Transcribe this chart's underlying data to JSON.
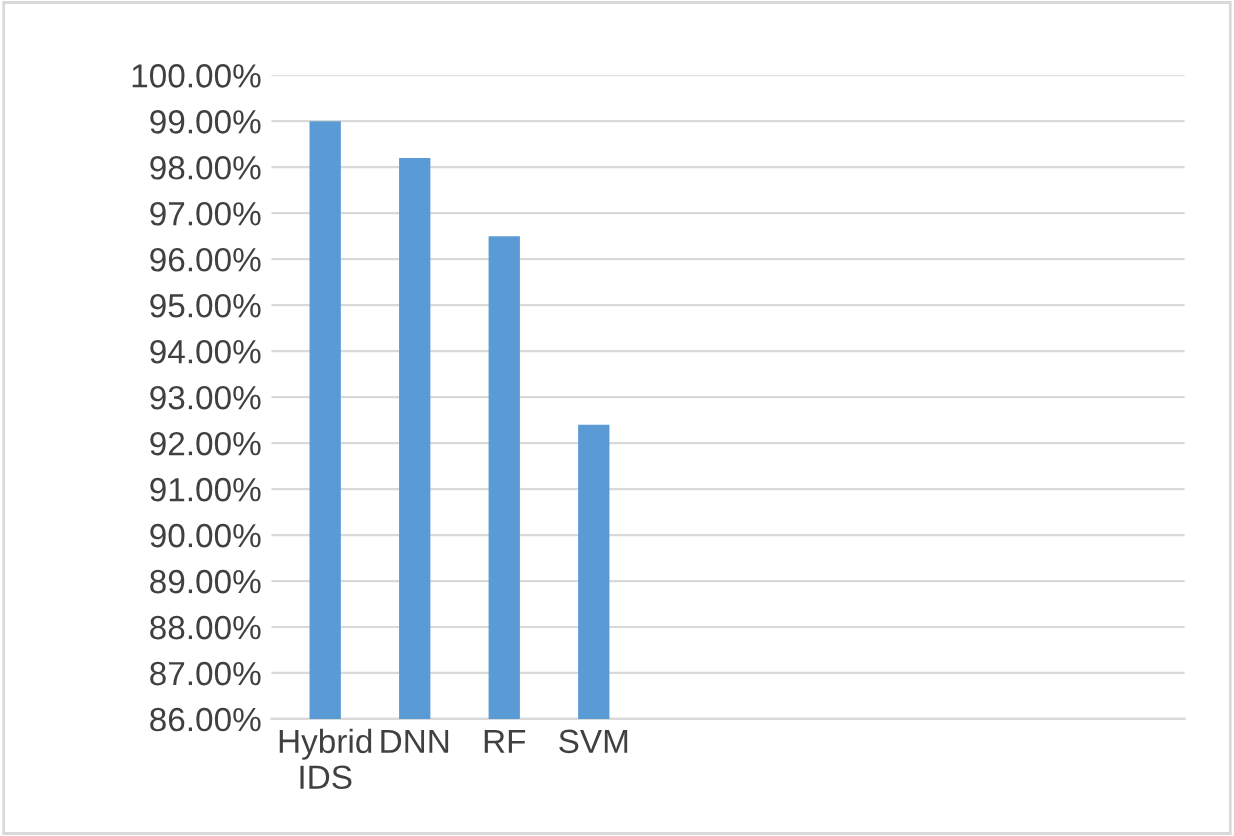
{
  "chart_data": {
    "type": "bar",
    "categories": [
      "Hybrid IDS",
      "DNN",
      "RF",
      "SVM",
      null,
      null,
      null,
      null,
      null,
      null
    ],
    "values": [
      99.0,
      98.2,
      96.5,
      92.4,
      null,
      null,
      null,
      null,
      null,
      null
    ],
    "color": "#5b9bd5",
    "ylim": [
      86,
      100
    ],
    "yticks": [
      {
        "value": 86,
        "label": "86.00%"
      },
      {
        "value": 87,
        "label": "87.00%"
      },
      {
        "value": 88,
        "label": "88.00%"
      },
      {
        "value": 89,
        "label": "89.00%"
      },
      {
        "value": 90,
        "label": "90.00%"
      },
      {
        "value": 91,
        "label": "91.00%"
      },
      {
        "value": 92,
        "label": "92.00%"
      },
      {
        "value": 93,
        "label": "93.00%"
      },
      {
        "value": 94,
        "label": "94.00%"
      },
      {
        "value": 95,
        "label": "95.00%"
      },
      {
        "value": 96,
        "label": "96.00%"
      },
      {
        "value": 97,
        "label": "97.00%"
      },
      {
        "value": 98,
        "label": "98.00%"
      },
      {
        "value": 99,
        "label": "99.00%"
      },
      {
        "value": 100,
        "label": "100.00%"
      }
    ],
    "grid": "y"
  }
}
